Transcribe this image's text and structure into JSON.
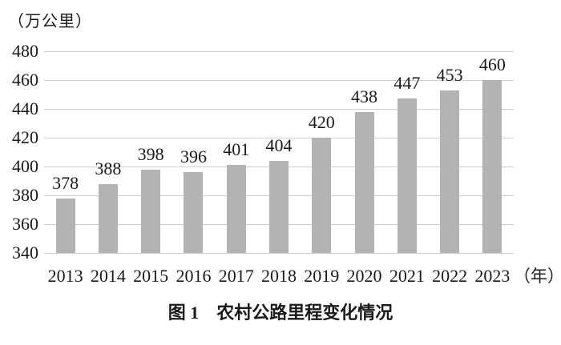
{
  "caption": "图 1　农村公路里程变化情况",
  "chart_data": {
    "type": "bar",
    "title": "图 1　农村公路里程变化情况",
    "ylabel": "（万公里）",
    "xlabel_suffix": "（年）",
    "categories": [
      "2013",
      "2014",
      "2015",
      "2016",
      "2017",
      "2018",
      "2019",
      "2020",
      "2021",
      "2022",
      "2023"
    ],
    "values": [
      378,
      388,
      398,
      396,
      401,
      404,
      420,
      438,
      447,
      453,
      460
    ],
    "ylim": [
      340,
      480
    ],
    "yticks": [
      340,
      360,
      380,
      400,
      420,
      440,
      460,
      480
    ],
    "grid": true,
    "legend": "none",
    "bar_color": "#b3b3b3",
    "grid_color": "#cfcfcf",
    "text_color": "#1a1a1a"
  }
}
